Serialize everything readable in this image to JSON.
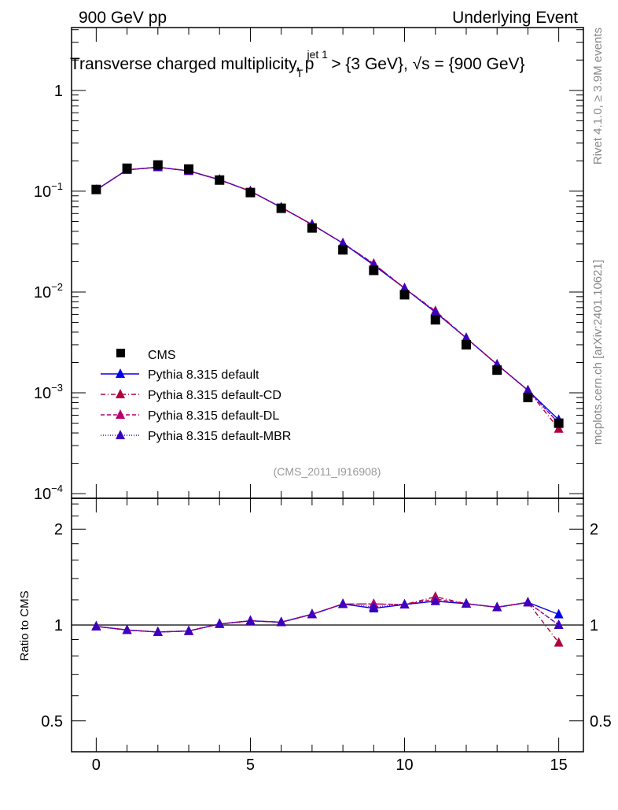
{
  "header": {
    "left": "900 GeV pp",
    "right": "Underlying Event",
    "side_top": "Rivet 4.1.0, ≥ 3.9M events",
    "side_bottom": "mcplots.cern.ch [arXiv:2401.10621]"
  },
  "chart_data": {
    "type": "scatter",
    "title": "Transverse charged multiplicity, p_T^{jet 1} > {3 GeV}, √s = {900 GeV}",
    "title_parts": {
      "main": "Transverse charged multiplicity, p",
      "sup": "jet 1",
      "sub": "T",
      "rest": " > {3 GeV}, √s = {900 GeV}"
    },
    "analysis_tag": "(CMS_2011_I916908)",
    "xlabel": "",
    "ylabel": "",
    "ratio_ylabel": "Ratio to CMS",
    "xlim": [
      -0.8,
      15.8
    ],
    "ylim": [
      9e-05,
      4.2
    ],
    "yscale": "log",
    "ratio_ylim": [
      0.4,
      2.5
    ],
    "ratio_yscale": "log",
    "x_ticks": [
      0,
      5,
      10,
      15
    ],
    "x_tick_labels": [
      "0",
      "5",
      "10",
      "15"
    ],
    "y_ticks": [
      1,
      0.1,
      0.01,
      0.001,
      0.0001
    ],
    "y_tick_labels": [
      {
        "base": "1",
        "exp": ""
      },
      {
        "base": "10",
        "exp": "−1"
      },
      {
        "base": "10",
        "exp": "−2"
      },
      {
        "base": "10",
        "exp": "−3"
      },
      {
        "base": "10",
        "exp": "−4"
      }
    ],
    "ratio_ticks": [
      0.5,
      1,
      2
    ],
    "ratio_tick_labels": [
      "0.5",
      "1",
      "2"
    ],
    "legend_position": "lower-left",
    "x": [
      0,
      1,
      2,
      3,
      4,
      5,
      6,
      7,
      8,
      9,
      10,
      11,
      12,
      13,
      14,
      15
    ],
    "data": {
      "name": "CMS",
      "color": "#000000",
      "values": [
        0.104,
        0.169,
        0.182,
        0.166,
        0.129,
        0.097,
        0.0677,
        0.0432,
        0.0262,
        0.0164,
        0.0094,
        0.0053,
        0.003,
        0.00168,
        0.0009,
        0.0005
      ]
    },
    "series": [
      {
        "name": "Pythia 8.315 default",
        "color": "#0000ee",
        "dash": "",
        "values": [
          0.103,
          0.163,
          0.173,
          0.159,
          0.13,
          0.1,
          0.0691,
          0.0467,
          0.0305,
          0.0185,
          0.0109,
          0.0063,
          0.0035,
          0.00191,
          0.00106,
          0.00054
        ]
      },
      {
        "name": "Pythia 8.315 default-CD",
        "color": "#b00040",
        "dash": "6,3,1,3",
        "values": [
          0.103,
          0.163,
          0.173,
          0.159,
          0.13,
          0.1,
          0.0691,
          0.0467,
          0.0305,
          0.0191,
          0.0109,
          0.0065,
          0.0035,
          0.00191,
          0.00106,
          0.00044
        ]
      },
      {
        "name": "Pythia 8.315 default-DL",
        "color": "#b80070",
        "dash": "5,3",
        "values": [
          0.103,
          0.163,
          0.173,
          0.159,
          0.13,
          0.1,
          0.0691,
          0.0467,
          0.0305,
          0.0191,
          0.0109,
          0.0064,
          0.0035,
          0.00191,
          0.00106,
          0.0005
        ]
      },
      {
        "name": "Pythia 8.315 default-MBR",
        "color": "#3a00c0",
        "dash": "1,2",
        "values": [
          0.103,
          0.163,
          0.173,
          0.159,
          0.13,
          0.1,
          0.0691,
          0.0467,
          0.0305,
          0.0187,
          0.0109,
          0.0063,
          0.0035,
          0.00191,
          0.00106,
          0.0005
        ]
      }
    ]
  }
}
